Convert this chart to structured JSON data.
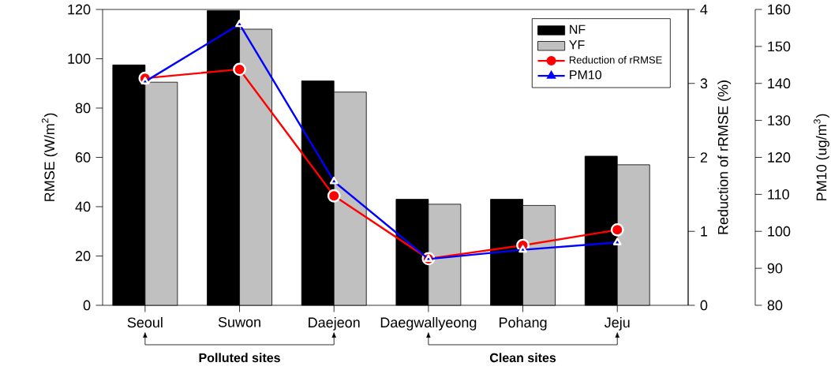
{
  "chart_data": {
    "type": "bar",
    "categories": [
      "Seoul",
      "Suwon",
      "Daejeon",
      "Daegwallyeong",
      "Pohang",
      "Jeju"
    ],
    "series": [
      {
        "name": "NF",
        "color": "#000000",
        "values": [
          97.5,
          119.5,
          91,
          43,
          43,
          60.5
        ]
      },
      {
        "name": "YF",
        "color": "#c0c0c0",
        "values": [
          90.5,
          112,
          86.5,
          41,
          40.5,
          57
        ]
      },
      {
        "name": "Reduction of rRMSE",
        "type": "line",
        "axis": "y2",
        "marker": "circle",
        "color": "#ff0000",
        "values": [
          3.07,
          3.19,
          1.48,
          0.63,
          0.81,
          1.02
        ]
      },
      {
        "name": "PM10",
        "type": "line",
        "axis": "y3",
        "marker": "triangle",
        "color": "#0000ff",
        "values": [
          140.5,
          156,
          113.5,
          92.5,
          95,
          97
        ]
      }
    ],
    "ylabel": "RMSE (W/m$^{2}$)",
    "y2label": "Reduction of rRMSE (%)",
    "y3label": "PM10 (ug/m$^{3}$)",
    "ylim": [
      0,
      120
    ],
    "yticks": [
      0,
      20,
      40,
      60,
      80,
      100,
      120
    ],
    "y2lim": [
      0,
      4
    ],
    "y2ticks": [
      0,
      1,
      2,
      3,
      4
    ],
    "y3lim": [
      80,
      160
    ],
    "y3ticks": [
      80,
      90,
      100,
      110,
      120,
      130,
      140,
      150,
      160
    ],
    "legend": "top right",
    "annotations": [
      "Polluted sites",
      "Clean sites"
    ]
  }
}
